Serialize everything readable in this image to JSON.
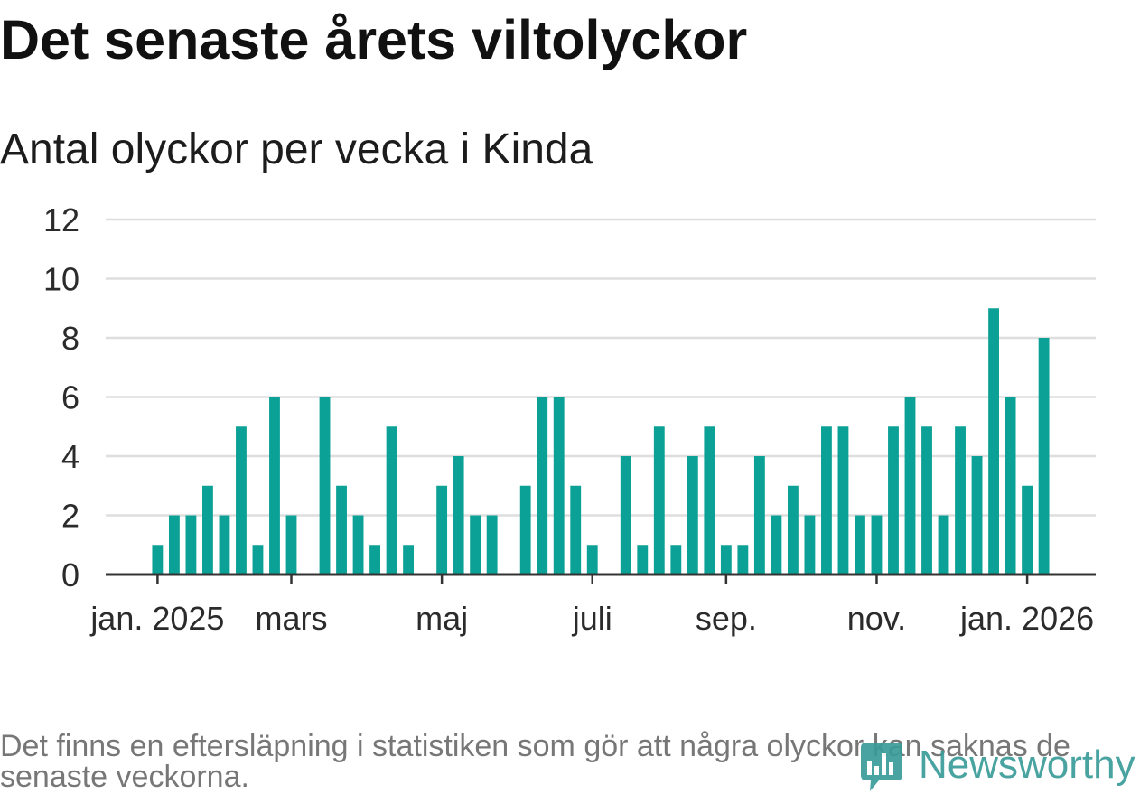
{
  "chart_data": {
    "type": "bar",
    "title": "Det senaste årets viltolyckor",
    "subtitle": "Antal olyckor per vecka i Kinda",
    "values": [
      1,
      2,
      2,
      3,
      2,
      5,
      1,
      6,
      2,
      0,
      6,
      3,
      2,
      1,
      5,
      1,
      0,
      3,
      4,
      2,
      2,
      0,
      3,
      6,
      6,
      3,
      1,
      0,
      4,
      1,
      5,
      1,
      4,
      5,
      1,
      1,
      4,
      2,
      3,
      2,
      5,
      5,
      2,
      2,
      5,
      6,
      5,
      2,
      5,
      4,
      9,
      6,
      3,
      8
    ],
    "x_ticks": [
      {
        "label": "jan. 2025",
        "week": 0
      },
      {
        "label": "mars",
        "week": 8
      },
      {
        "label": "maj",
        "week": 17
      },
      {
        "label": "juli",
        "week": 26
      },
      {
        "label": "sep.",
        "week": 34
      },
      {
        "label": "nov.",
        "week": 43
      },
      {
        "label": "jan. 2026",
        "week": 52
      }
    ],
    "xlim": [
      -3.1,
      56.1
    ],
    "ylim": [
      0,
      12
    ],
    "y_ticks": [
      0,
      2,
      4,
      6,
      8,
      10,
      12
    ],
    "grid": true,
    "colors": {
      "bar": "#0ca196",
      "grid": "#dedede",
      "axis": "#333333"
    }
  },
  "footnote": "Det finns en eftersläpning i statistiken som gör att några olyckor kan saknas de senaste veckorna.",
  "brand": {
    "name": "Newsworthy",
    "color": "#3a9c98"
  }
}
